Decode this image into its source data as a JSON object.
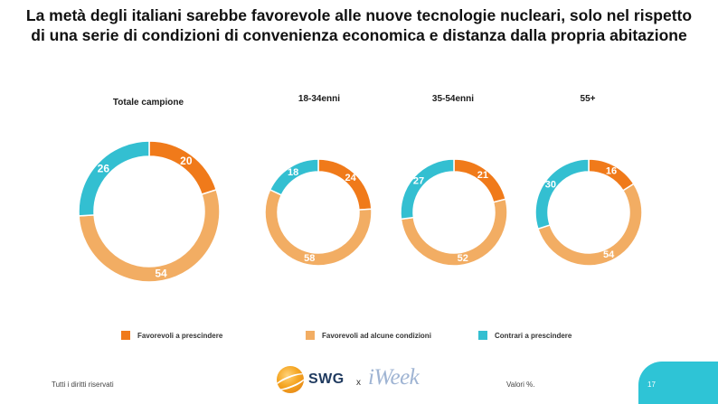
{
  "title_line1": "La metà degli italiani sarebbe favorevole alle nuove tecnologie nucleari, solo nel rispetto",
  "title_line2": "di una serie di condizioni di convenienza economica e distanza dalla propria abitazione",
  "chart_data": [
    {
      "type": "pie",
      "title": "Totale campione",
      "categories": [
        "Favorevoli a prescindere",
        "Favorevoli ad alcune condizioni",
        "Contrari a prescindere"
      ],
      "values": [
        20,
        54,
        26
      ]
    },
    {
      "type": "pie",
      "title": "18-34enni",
      "categories": [
        "Favorevoli a prescindere",
        "Favorevoli ad alcune condizioni",
        "Contrari a prescindere"
      ],
      "values": [
        24,
        58,
        18
      ]
    },
    {
      "type": "pie",
      "title": "35-54enni",
      "categories": [
        "Favorevoli a prescindere",
        "Favorevoli ad alcune condizioni",
        "Contrari a prescindere"
      ],
      "values": [
        21,
        52,
        27
      ]
    },
    {
      "type": "pie",
      "title": "55+",
      "categories": [
        "Favorevoli a prescindere",
        "Favorevoli ad alcune condizioni",
        "Contrari a prescindere"
      ],
      "values": [
        16,
        54,
        30
      ]
    }
  ],
  "legend": [
    {
      "label": "Favorevoli a prescindere",
      "color": "#f07a1a"
    },
    {
      "label": "Favorevoli ad alcune condizioni",
      "color": "#f2ad63"
    },
    {
      "label": "Contrari a prescindere",
      "color": "#33bfd1"
    }
  ],
  "footer": {
    "rights": "Tutti i diritti riservati",
    "logo_swg": "SWG",
    "logo_x": "x",
    "logo_iweek": "iWeek",
    "note": "Valori %.",
    "page": "17"
  }
}
